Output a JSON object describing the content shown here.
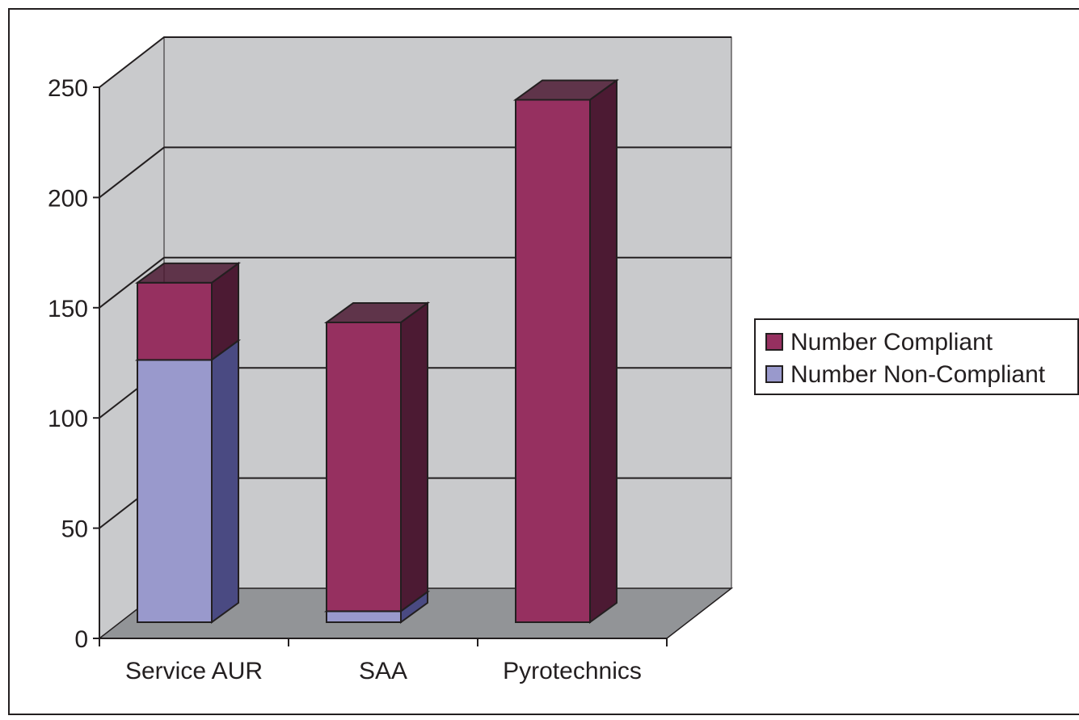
{
  "chart_data": {
    "type": "bar",
    "stacked": true,
    "three_d": true,
    "categories": [
      "Service AUR",
      "SAA",
      "Pyrotechnics"
    ],
    "series": [
      {
        "name": "Number Non-Compliant",
        "values": [
          119,
          5,
          0
        ],
        "color": "#9999cc",
        "side_color": "#4a4a82"
      },
      {
        "name": "Number Compliant",
        "values": [
          35,
          131,
          237
        ],
        "color": "#963060",
        "side_color": "#4c1a33"
      }
    ],
    "ylim": [
      0,
      250
    ],
    "yticks": [
      0,
      50,
      100,
      150,
      200,
      250
    ],
    "grid": true,
    "legend_position": "right",
    "colors": {
      "back_wall": "#c9cacc",
      "floor": "#929497",
      "gridline": "#231f20"
    }
  }
}
